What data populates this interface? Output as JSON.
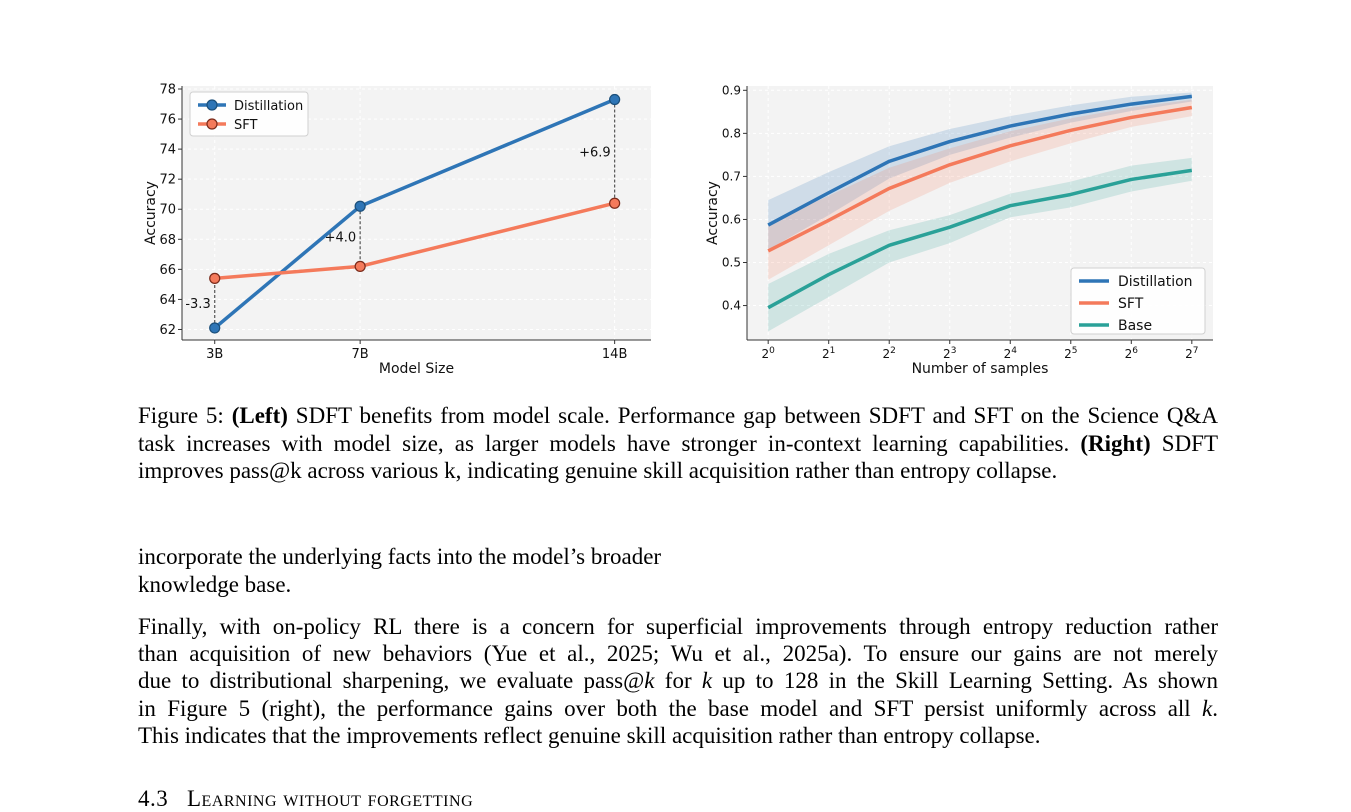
{
  "figure": {
    "left_chart": {
      "chart_data": {
        "type": "line",
        "categories": [
          "3B",
          "7B",
          "14B"
        ],
        "x_positions": [
          3,
          7,
          14
        ],
        "xlabel": "Model Size",
        "ylabel": "Accuracy",
        "ylim": [
          61.3,
          78.2
        ],
        "yticks": [
          62,
          64,
          66,
          68,
          70,
          72,
          74,
          76,
          78
        ],
        "grid": true,
        "legend_placement": "top-left",
        "series": [
          {
            "name": "Distillation",
            "values": [
              62.1,
              70.2,
              77.3
            ],
            "color": "#2E75B6"
          },
          {
            "name": "SFT",
            "values": [
              65.4,
              66.2,
              70.4
            ],
            "color": "#F47A5B"
          }
        ],
        "annotations": [
          {
            "text": "-3.3",
            "category": "3B"
          },
          {
            "text": "+4.0",
            "category": "7B"
          },
          {
            "text": "+6.9",
            "category": "14B"
          }
        ]
      }
    },
    "right_chart": {
      "chart_data": {
        "type": "line",
        "x_exponents": [
          0,
          1,
          2,
          3,
          4,
          5,
          6,
          7
        ],
        "xtick_base": "2",
        "xlabel": "Number of samples",
        "ylabel": "Accuracy",
        "ylim": [
          0.32,
          0.91
        ],
        "yticks": [
          "0.4",
          "0.5",
          "0.6",
          "0.7",
          "0.8",
          "0.9"
        ],
        "grid": true,
        "legend_placement": "bottom-right",
        "series": [
          {
            "name": "Distillation",
            "color": "#2E75B6",
            "values": [
              0.587,
              0.662,
              0.735,
              0.781,
              0.817,
              0.845,
              0.868,
              0.886
            ],
            "lower": [
              0.53,
              0.61,
              0.695,
              0.75,
              0.79,
              0.825,
              0.852,
              0.874
            ],
            "upper": [
              0.645,
              0.71,
              0.77,
              0.81,
              0.84,
              0.865,
              0.885,
              0.895
            ]
          },
          {
            "name": "SFT",
            "color": "#F47A5B",
            "values": [
              0.527,
              0.598,
              0.672,
              0.727,
              0.771,
              0.807,
              0.837,
              0.86
            ],
            "lower": [
              0.46,
              0.54,
              0.62,
              0.685,
              0.735,
              0.777,
              0.815,
              0.84
            ],
            "upper": [
              0.59,
              0.655,
              0.72,
              0.765,
              0.805,
              0.835,
              0.86,
              0.878
            ]
          },
          {
            "name": "Base",
            "color": "#2AA198",
            "values": [
              0.395,
              0.472,
              0.54,
              0.582,
              0.632,
              0.658,
              0.693,
              0.714
            ],
            "lower": [
              0.34,
              0.42,
              0.5,
              0.545,
              0.605,
              0.628,
              0.665,
              0.69
            ],
            "upper": [
              0.45,
              0.52,
              0.575,
              0.61,
              0.66,
              0.688,
              0.725,
              0.743
            ]
          }
        ]
      }
    },
    "caption": {
      "label": "Figure 5:",
      "left_tag": "(Left)",
      "left_text": "SDFT benefits from model scale. Performance gap between SDFT and SFT on the Science Q&A task increases with model size, as larger models have stronger in-context learning capabilities.",
      "right_tag": "(Right)",
      "right_text": "SDFT improves pass@k across various k, indicating genuine skill acquisition rather than entropy collapse."
    }
  },
  "body": {
    "para1_line1": "incorporate the underlying facts into the model’s broader",
    "para1_line2": "knowledge base.",
    "para2": {
      "l1": "Finally, with on-policy RL there is a concern for superficial improvements through entropy reduction rather",
      "l2": "than acquisition of new behaviors (Yue et al., 2025; Wu et al., 2025a). To ensure our gains are not merely",
      "l3a": "due to distributional sharpening, we evaluate pass@",
      "k": "k",
      "l3b": " for ",
      "l3c": " up to 128 in the Skill Learning Setting. As shown",
      "l4a": "in Figure 5 (right), the performance gains over both the base model and SFT persist uniformly across all ",
      "l4b": ".",
      "l5": "This indicates that the improvements reflect genuine skill acquisition rather than entropy collapse."
    },
    "section_number": "4.3",
    "section_title": "Learning without forgetting"
  }
}
